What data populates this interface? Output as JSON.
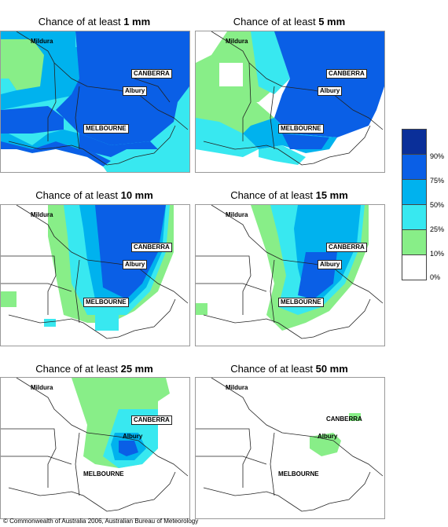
{
  "title_prefix": "Chance of at least",
  "panels": [
    {
      "amount": "1 mm"
    },
    {
      "amount": "5 mm"
    },
    {
      "amount": "10 mm"
    },
    {
      "amount": "15 mm"
    },
    {
      "amount": "25 mm"
    },
    {
      "amount": "50 mm"
    }
  ],
  "cities": {
    "mildura": "Mildura",
    "canberra": "CANBERRA",
    "albury": "Albury",
    "melbourne": "MELBOURNE"
  },
  "legend": {
    "labels": [
      "90%",
      "75%",
      "50%",
      "25%",
      "10%",
      "0%"
    ],
    "colors": [
      "#0a2f99",
      "#0a5fe6",
      "#00b2ee",
      "#38e8f0",
      "#88ee88",
      "#ffffff"
    ]
  },
  "copyright": "© Commonwealth of Australia 2006, Australian Bureau of Meteorology"
}
